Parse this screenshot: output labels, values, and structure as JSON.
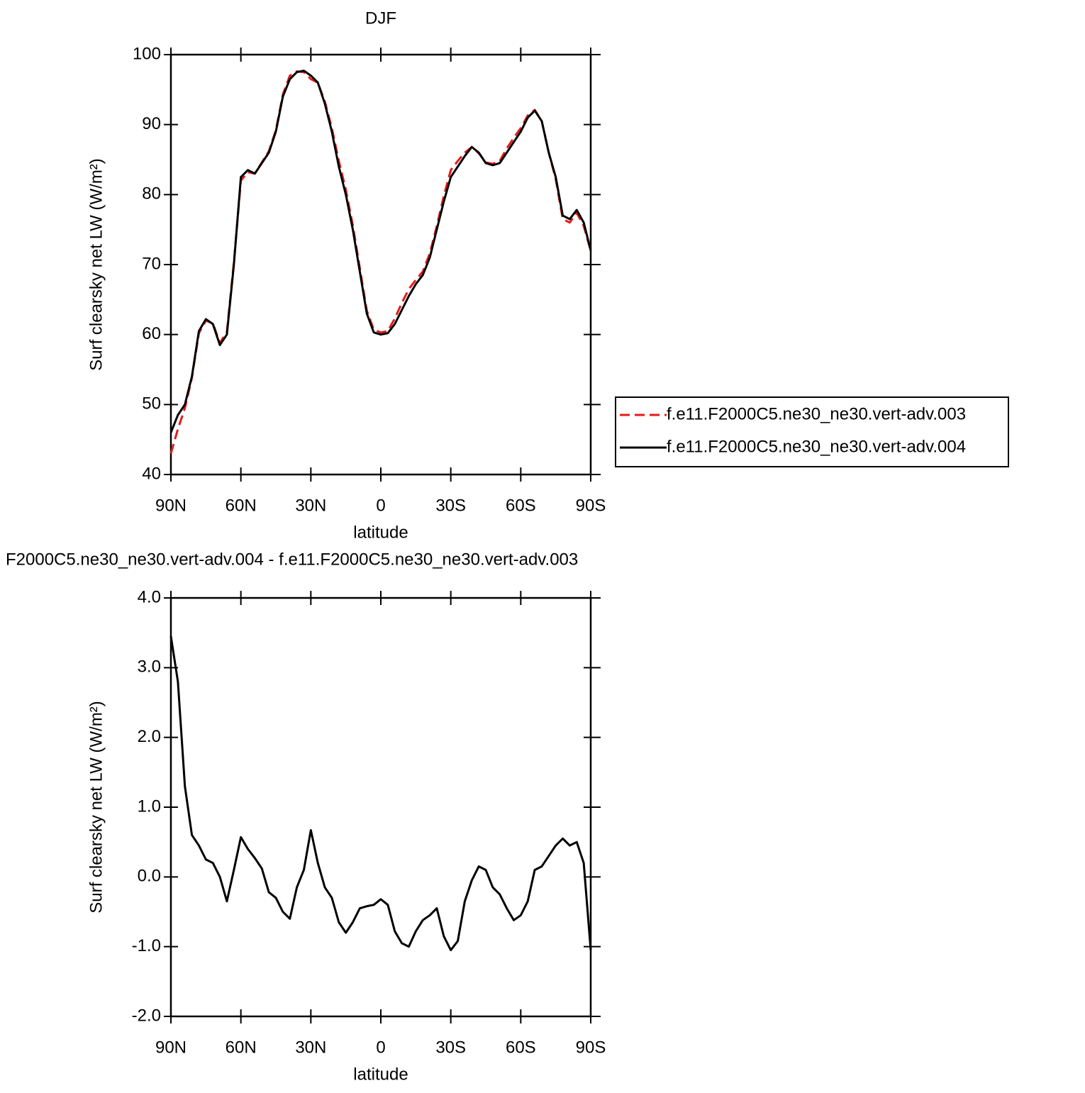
{
  "chart_data": [
    {
      "type": "line",
      "title": "DJF",
      "xlabel": "latitude",
      "ylabel": "Surf clearsky net LW (W/m²)",
      "x": [
        90,
        87,
        84,
        81,
        78,
        75,
        72,
        69,
        66,
        63,
        60,
        57,
        54,
        51,
        48,
        45,
        42,
        39,
        36,
        33,
        30,
        27,
        24,
        21,
        18,
        15,
        12,
        9,
        6,
        3,
        0,
        -3,
        -6,
        -9,
        -12,
        -15,
        -18,
        -21,
        -24,
        -27,
        -30,
        -33,
        -36,
        -39,
        -42,
        -45,
        -48,
        -51,
        -54,
        -57,
        -60,
        -63,
        -66,
        -69,
        -72,
        -75,
        -78,
        -81,
        -84,
        -87,
        -90
      ],
      "series": [
        {
          "name": "f.e11.F2000C5.ne30_ne30.vert-adv.003",
          "color": "#e8191a",
          "line_style": "dashed",
          "values": [
            43,
            46.5,
            49.5,
            53.8,
            60.2,
            62,
            61.6,
            58.8,
            60.4,
            70.3,
            82,
            83.2,
            83,
            84.6,
            86.2,
            89.2,
            94.3,
            97,
            97.6,
            97.5,
            96.5,
            96,
            93.3,
            89.5,
            84.8,
            80.7,
            75.6,
            69.5,
            63.4,
            60.7,
            60.3,
            60.5,
            62.3,
            64.5,
            66.5,
            67.8,
            69,
            71.6,
            75.5,
            79.8,
            83.5,
            84.8,
            86,
            86.8,
            85.9,
            84.6,
            84.4,
            84.8,
            86.6,
            88.1,
            89.5,
            91.3,
            92.1,
            90.5,
            86,
            82.2,
            76.5,
            76,
            77.4,
            75.5,
            72
          ]
        },
        {
          "name": "f.e11.F2000C5.ne30_ne30.vert-adv.004",
          "color": "#000000",
          "line_style": "solid",
          "values": [
            46,
            48.5,
            50,
            54,
            60.5,
            62.2,
            61.5,
            58.5,
            60,
            70,
            82.5,
            83.5,
            83,
            84.5,
            86,
            89,
            94,
            96.5,
            97.5,
            97.7,
            97,
            96,
            93,
            89,
            84,
            80,
            75,
            69,
            63,
            60.3,
            60,
            60.2,
            61.5,
            63.5,
            65.5,
            67.2,
            68.5,
            71,
            75,
            79,
            82.5,
            84,
            85.5,
            86.8,
            86,
            84.5,
            84.2,
            84.5,
            86,
            87.5,
            89,
            91,
            92,
            90.5,
            86,
            82.5,
            77,
            76.5,
            77.8,
            76,
            72
          ]
        }
      ],
      "xlim": [
        90,
        -90
      ],
      "xticks": [
        {
          "value": 90,
          "label": "90N"
        },
        {
          "value": 60,
          "label": "60N"
        },
        {
          "value": 30,
          "label": "30N"
        },
        0,
        {
          "value": -30,
          "label": "30S"
        },
        {
          "value": -60,
          "label": "60S"
        },
        {
          "value": -90,
          "label": "90S"
        }
      ],
      "ylim": [
        40,
        100
      ],
      "yticks": [
        40,
        50,
        60,
        70,
        80,
        90,
        100
      ],
      "legend": "right"
    },
    {
      "type": "line",
      "title": "F2000C5.ne30_ne30.vert-adv.004 - f.e11.F2000C5.ne30_ne30.vert-adv.003",
      "xlabel": "latitude",
      "ylabel": "Surf clearsky net LW (W/m²)",
      "x": [
        90,
        87,
        84,
        81,
        78,
        75,
        72,
        69,
        66,
        63,
        60,
        57,
        54,
        51,
        48,
        45,
        42,
        39,
        36,
        33,
        30,
        27,
        24,
        21,
        18,
        15,
        12,
        9,
        6,
        3,
        0,
        -3,
        -6,
        -9,
        -12,
        -15,
        -18,
        -21,
        -24,
        -27,
        -30,
        -33,
        -36,
        -39,
        -42,
        -45,
        -48,
        -51,
        -54,
        -57,
        -60,
        -63,
        -66,
        -69,
        -72,
        -75,
        -78,
        -81,
        -84,
        -87,
        -90
      ],
      "series": [
        {
          "color": "#000000",
          "line_style": "solid",
          "values": [
            3.45,
            2.8,
            1.3,
            0.6,
            0.45,
            0.25,
            0.2,
            0,
            -0.35,
            0.1,
            0.57,
            0.4,
            0.27,
            0.12,
            -0.22,
            -0.3,
            -0.5,
            -0.6,
            -0.15,
            0.1,
            0.67,
            0.2,
            -0.15,
            -0.3,
            -0.65,
            -0.8,
            -0.65,
            -0.45,
            -0.42,
            -0.4,
            -0.32,
            -0.4,
            -0.78,
            -0.95,
            -1,
            -0.78,
            -0.62,
            -0.55,
            -0.45,
            -0.85,
            -1.05,
            -0.92,
            -0.35,
            -0.05,
            0.15,
            0.1,
            -0.15,
            -0.25,
            -0.45,
            -0.62,
            -0.55,
            -0.35,
            0.1,
            0.15,
            0.3,
            0.45,
            0.55,
            0.45,
            0.5,
            0.2,
            -1.05
          ]
        }
      ],
      "xlim": [
        90,
        -90
      ],
      "xticks": [
        {
          "value": 90,
          "label": "90N"
        },
        {
          "value": 60,
          "label": "60N"
        },
        {
          "value": 30,
          "label": "30N"
        },
        0,
        {
          "value": -30,
          "label": "30S"
        },
        {
          "value": -60,
          "label": "60S"
        },
        {
          "value": -90,
          "label": "90S"
        }
      ],
      "ylim": [
        -2,
        4
      ],
      "yticks": [
        {
          "value": -2,
          "label": "-2.0"
        },
        {
          "value": -1,
          "label": "-1.0"
        },
        {
          "value": 0,
          "label": "0.0"
        },
        {
          "value": 1,
          "label": "1.0"
        },
        {
          "value": 2,
          "label": "2.0"
        },
        {
          "value": 3,
          "label": "3.0"
        },
        {
          "value": 4,
          "label": "4.0"
        }
      ]
    }
  ]
}
